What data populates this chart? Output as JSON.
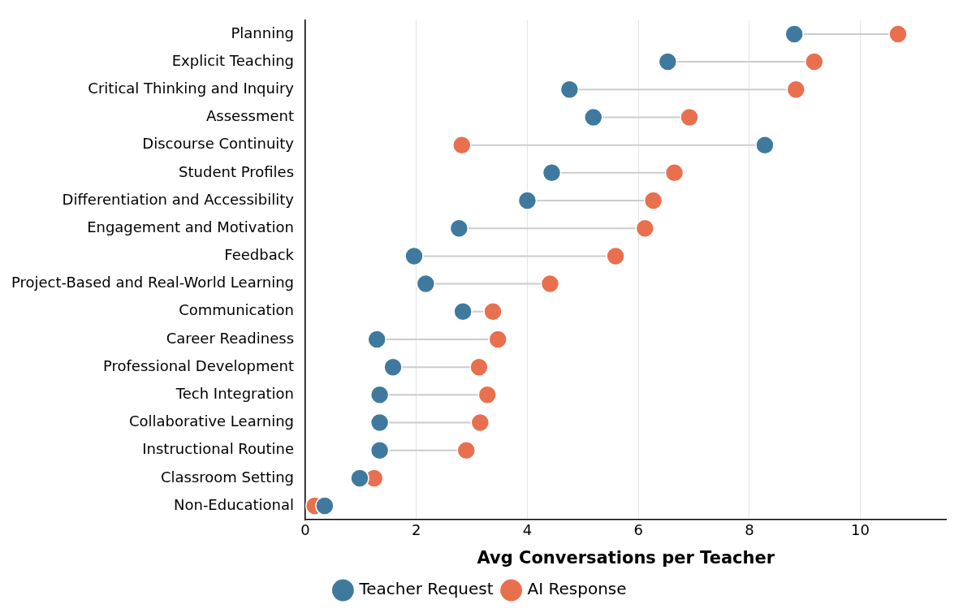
{
  "chart_data": {
    "type": "lollipop",
    "orientation": "horizontal",
    "xlabel": "Avg Conversations per Teacher",
    "categories": [
      "Planning",
      "Explicit Teaching",
      "Critical Thinking and Inquiry",
      "Assessment",
      "Discourse Continuity",
      "Student Profiles",
      "Differentiation and Accessibility",
      "Engagement and Motivation",
      "Feedback",
      "Project-Based and Real-World Learning",
      "Communication",
      "Career Readiness",
      "Professional Development",
      "Tech Integration",
      "Collaborative Learning",
      "Instructional Routine",
      "Classroom Setting",
      "Non-Educational"
    ],
    "series": [
      {
        "name": "Teacher Request",
        "color": "#3f7a9e",
        "values": [
          8.81,
          6.53,
          4.76,
          5.19,
          8.28,
          4.44,
          4.0,
          2.77,
          1.96,
          2.17,
          2.84,
          1.29,
          1.58,
          1.34,
          1.34,
          1.34,
          0.98,
          0.35
        ]
      },
      {
        "name": "AI Response",
        "color": "#e8704f",
        "values": [
          10.68,
          9.17,
          8.84,
          6.92,
          2.82,
          6.65,
          6.27,
          6.12,
          5.59,
          4.41,
          3.38,
          3.47,
          3.13,
          3.28,
          3.15,
          2.9,
          1.24,
          0.17
        ]
      }
    ],
    "xlim": [
      0,
      11.55
    ],
    "xticks": [
      0,
      2,
      4,
      6,
      8,
      10
    ],
    "grid": "x",
    "legend": "bottom",
    "marker": "circle"
  }
}
